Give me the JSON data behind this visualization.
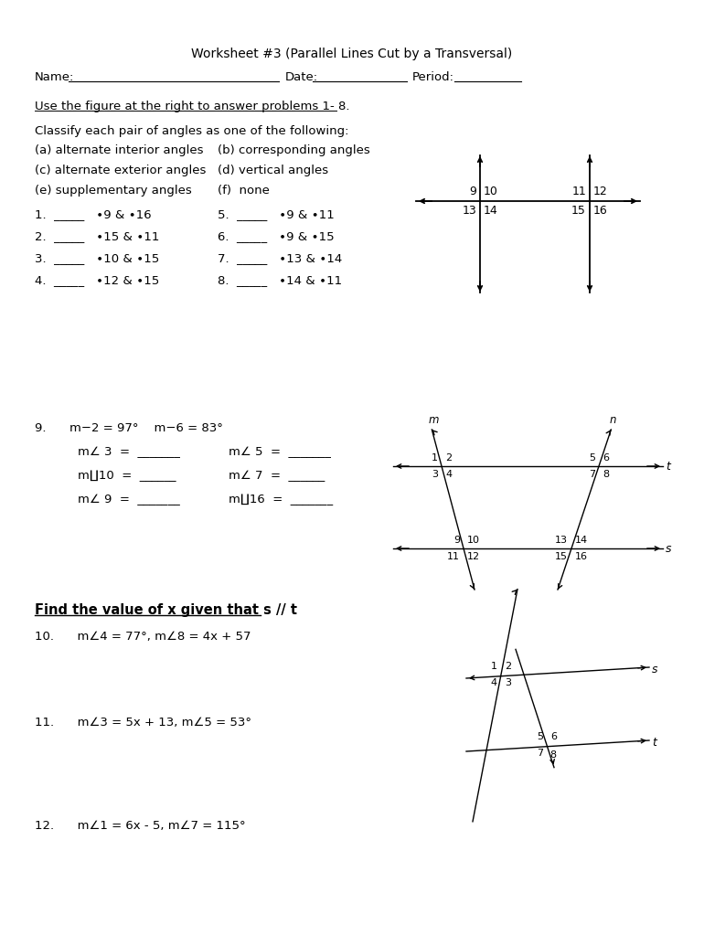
{
  "title": "Worksheet #3 (Parallel Lines Cut by a Transversal)",
  "bg_color": "#ffffff",
  "content": {
    "name_label": "Name:",
    "date_label": "Date:",
    "period_label": "Period:",
    "instruction1": "Use the figure at the right to answer problems 1- 8.",
    "instruction2": "Classify each pair of angles as one of the following:",
    "options_left": [
      "(a) alternate interior angles",
      "(c) alternate exterior angles",
      "(e) supplementary angles"
    ],
    "options_right": [
      "(b) corresponding angles",
      "(d) vertical angles",
      "(f)  none"
    ],
    "problems_left": [
      "1.  _____   ∙9 & ∙16",
      "2.  _____   ∙15 & ∙11",
      "3.  _____   ∙10 & ∙15",
      "4.  _____   ∙12 & ∙15"
    ],
    "problems_right": [
      "5.  _____   ∙9 & ∙11",
      "6.  _____   ∙9 & ∙15",
      "7.  _____   ∙13 & ∙14",
      "8.  _____   ∙14 & ∙11"
    ],
    "p9_header": "9.      m−2 = 97°    m−6 = 83°",
    "p9_rows": [
      [
        "m∠ 3  =  _______",
        "m∠ 5  =  _______"
      ],
      [
        "m∐10  =  ______",
        "m∠ 7  =  ______"
      ],
      [
        "m∠ 9  =  _______",
        "m∐16  =  _______"
      ]
    ],
    "find_x": "Find the value of x given that s // t",
    "p10": "10.      m∠4 = 77°, m∠8 = 4x + 57",
    "p11": "11.      m∠3 = 5x + 13, m∠5 = 53°",
    "p12": "12.      m∠1 = 6x - 5, m∠7 = 115°"
  }
}
